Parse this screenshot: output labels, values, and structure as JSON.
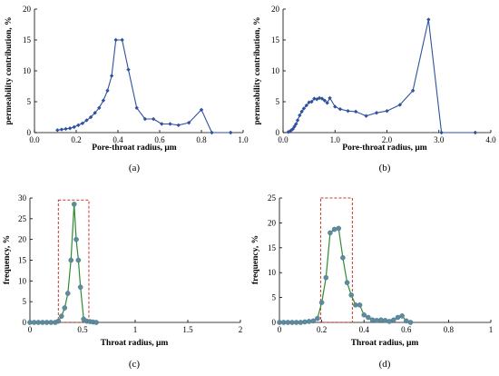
{
  "chart_data": [
    {
      "id": "a",
      "type": "line",
      "panel_label": "(a)",
      "xlabel": "Pore-throat radius,  μm",
      "ylabel": "permeability contribution,  %",
      "xlim": [
        0,
        1.0
      ],
      "ylim": [
        0,
        20
      ],
      "xticks": [
        0,
        0.2,
        0.4,
        0.6,
        0.8,
        1.0
      ],
      "xtick_labels": [
        "0.0",
        "0.2",
        "0.4",
        "0.6",
        "0.8",
        "1.0"
      ],
      "yticks": [
        0,
        5,
        10,
        15,
        20
      ],
      "ytick_labels": [
        "0",
        "5",
        "10",
        "15",
        "20"
      ],
      "grid": false,
      "color": "#2f52a0",
      "x": [
        0.11,
        0.13,
        0.15,
        0.17,
        0.19,
        0.21,
        0.23,
        0.25,
        0.27,
        0.29,
        0.31,
        0.33,
        0.35,
        0.37,
        0.39,
        0.42,
        0.45,
        0.49,
        0.53,
        0.57,
        0.61,
        0.65,
        0.69,
        0.74,
        0.8,
        0.85,
        0.94
      ],
      "y": [
        0.4,
        0.5,
        0.6,
        0.7,
        0.9,
        1.2,
        1.5,
        2.0,
        2.5,
        3.2,
        4.0,
        5.2,
        6.8,
        9.2,
        15.0,
        15.0,
        10.2,
        4.0,
        2.2,
        2.2,
        1.4,
        1.4,
        1.2,
        1.6,
        3.7,
        0.0,
        0.0
      ]
    },
    {
      "id": "b",
      "type": "line",
      "panel_label": "(b)",
      "xlabel": "Pore-throat radius,  μm",
      "ylabel": "permeability contribution,  %",
      "xlim": [
        0,
        4.0
      ],
      "ylim": [
        0,
        20
      ],
      "xticks": [
        0,
        1.0,
        2.0,
        3.0,
        4.0
      ],
      "xtick_labels": [
        "0.0",
        "1.0",
        "2.0",
        "3.0",
        "4.0"
      ],
      "yticks": [
        0,
        5,
        10,
        15,
        20
      ],
      "ytick_labels": [
        "0",
        "5",
        "10",
        "15",
        "20"
      ],
      "grid": false,
      "color": "#2f52a0",
      "x": [
        0.1,
        0.13,
        0.16,
        0.19,
        0.22,
        0.25,
        0.28,
        0.32,
        0.36,
        0.4,
        0.45,
        0.5,
        0.55,
        0.6,
        0.65,
        0.7,
        0.75,
        0.8,
        0.85,
        0.9,
        1.0,
        1.1,
        1.25,
        1.4,
        1.6,
        1.8,
        2.0,
        2.25,
        2.5,
        2.8,
        3.05,
        3.7
      ],
      "y": [
        0.1,
        0.2,
        0.4,
        0.6,
        1.0,
        1.4,
        2.0,
        2.8,
        3.4,
        3.9,
        4.4,
        4.9,
        5.0,
        5.5,
        5.4,
        5.6,
        5.5,
        5.2,
        4.8,
        5.6,
        4.2,
        3.8,
        3.5,
        3.4,
        2.7,
        3.2,
        3.5,
        4.5,
        6.8,
        18.3,
        0.0,
        0.0
      ]
    },
    {
      "id": "c",
      "type": "line",
      "panel_label": "(c)",
      "xlabel": "Throat radius,  μm",
      "ylabel": "frequency,  %",
      "xlim": [
        0,
        2
      ],
      "ylim": [
        0,
        30
      ],
      "xticks": [
        0,
        0.5,
        1,
        1.5,
        2
      ],
      "xtick_labels": [
        "0",
        "0.5",
        "1",
        "1.5",
        "2"
      ],
      "yticks": [
        0,
        5,
        10,
        15,
        20,
        25,
        30
      ],
      "ytick_labels": [
        "0",
        "5",
        "10",
        "15",
        "20",
        "25",
        "30"
      ],
      "grid": false,
      "color": "#2e8b2e",
      "highlight_box": {
        "x": [
          0.27,
          0.56
        ],
        "y": [
          0,
          29.5
        ]
      },
      "x": [
        0.0,
        0.04,
        0.08,
        0.12,
        0.16,
        0.2,
        0.24,
        0.27,
        0.3,
        0.33,
        0.36,
        0.39,
        0.42,
        0.44,
        0.46,
        0.48,
        0.51,
        0.54,
        0.57,
        0.6,
        0.63
      ],
      "y": [
        0,
        0,
        0,
        0,
        0,
        0,
        0,
        0.3,
        1.5,
        3.5,
        7.0,
        15.0,
        28.5,
        20.0,
        15.0,
        8.5,
        0.8,
        0.3,
        0.2,
        0.1,
        0
      ]
    },
    {
      "id": "d",
      "type": "line",
      "panel_label": "(d)",
      "xlabel": "Throat radius,  μm",
      "ylabel": "frequency,  %",
      "xlim": [
        0,
        1
      ],
      "ylim": [
        0,
        25
      ],
      "xticks": [
        0,
        0.2,
        0.4,
        0.6,
        0.8,
        1
      ],
      "xtick_labels": [
        "0",
        "0.2",
        "0.4",
        "0.6",
        "0.8",
        "1"
      ],
      "yticks": [
        0,
        5,
        10,
        15,
        20,
        25
      ],
      "ytick_labels": [
        "0",
        "5",
        "10",
        "15",
        "20",
        "25"
      ],
      "grid": false,
      "color": "#2e8b2e",
      "highlight_box": {
        "x": [
          0.195,
          0.345
        ],
        "y": [
          0,
          25
        ]
      },
      "x": [
        0.0,
        0.02,
        0.04,
        0.06,
        0.08,
        0.1,
        0.12,
        0.14,
        0.16,
        0.18,
        0.2,
        0.22,
        0.24,
        0.26,
        0.28,
        0.3,
        0.32,
        0.34,
        0.36,
        0.38,
        0.4,
        0.42,
        0.44,
        0.46,
        0.48,
        0.5,
        0.52,
        0.54,
        0.56,
        0.58,
        0.6,
        0.62
      ],
      "y": [
        0,
        0,
        0,
        0,
        0,
        0,
        0.1,
        0.2,
        0.3,
        0.8,
        4.0,
        9.0,
        18.0,
        18.7,
        18.9,
        13.0,
        8.0,
        5.5,
        3.5,
        3.5,
        1.5,
        1.0,
        0.5,
        0.4,
        0.5,
        0.4,
        0.2,
        0.5,
        1.0,
        1.3,
        0.3,
        0.0
      ]
    }
  ]
}
